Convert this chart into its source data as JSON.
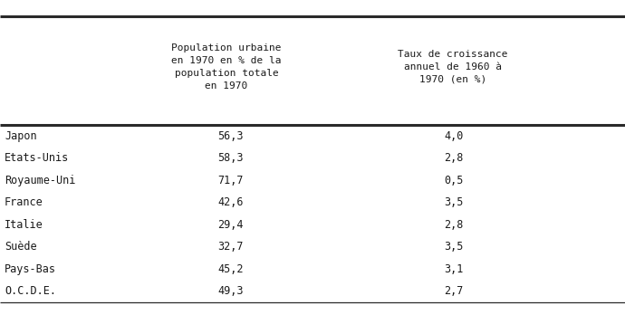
{
  "col1_header": "Population urbaine\nen 1970 en % de la\npopulation totale\nen 1970",
  "col2_header": "Taux de croissance\nannuel de 1960 à\n1970 (en %)",
  "rows": [
    [
      "Japon",
      "56,3",
      "4,0"
    ],
    [
      "Etats-Unis",
      "58,3",
      "2,8"
    ],
    [
      "Royaume-Uni",
      "71,7",
      "0,5"
    ],
    [
      "France",
      "42,6",
      "3,5"
    ],
    [
      "Italie",
      "29,4",
      "2,8"
    ],
    [
      "Suède",
      "32,7",
      "3,5"
    ],
    [
      "Pays-Bas",
      "45,2",
      "3,1"
    ],
    [
      "O.C.D.E.",
      "49,3",
      "2,7"
    ]
  ],
  "bg_color": "#ffffff",
  "text_color": "#1a1a1a",
  "line_color": "#2a2a2a",
  "font_size_header": 8.0,
  "font_size_data": 8.5
}
